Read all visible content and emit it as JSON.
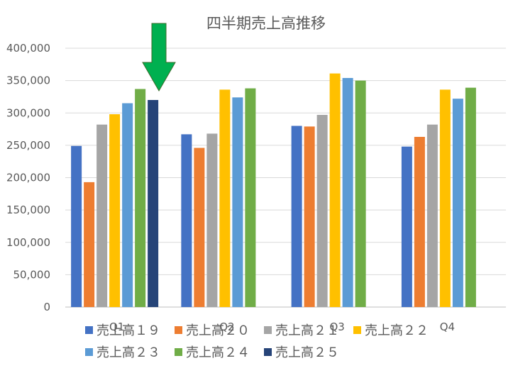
{
  "chart_data": {
    "type": "bar",
    "title": "四半期売上高推移",
    "categories": [
      "Q1",
      "Q2",
      "Q3",
      "Q4"
    ],
    "ylim": [
      0,
      400000
    ],
    "yticks": [
      "0",
      "50,000",
      "100,000",
      "150,000",
      "200,000",
      "250,000",
      "300,000",
      "350,000",
      "400,000"
    ],
    "ytick_values": [
      0,
      50000,
      100000,
      150000,
      200000,
      250000,
      300000,
      350000,
      400000
    ],
    "grid": true,
    "legend_position": "bottom",
    "series": [
      {
        "name": "売上高１９",
        "color": "#4472C4",
        "values": [
          249000,
          267000,
          280000,
          248000
        ]
      },
      {
        "name": "売上高２０",
        "color": "#ED7D31",
        "values": [
          193000,
          246000,
          279000,
          263000
        ]
      },
      {
        "name": "売上高２１",
        "color": "#A5A5A5",
        "values": [
          282000,
          268000,
          297000,
          282000
        ]
      },
      {
        "name": "売上高２２",
        "color": "#FFC000",
        "values": [
          298000,
          336000,
          361000,
          336000
        ]
      },
      {
        "name": "売上高２３",
        "color": "#5B9BD5",
        "values": [
          315000,
          324000,
          354000,
          322000
        ]
      },
      {
        "name": "売上高２４",
        "color": "#70AD47",
        "values": [
          337000,
          338000,
          350000,
          339000
        ]
      },
      {
        "name": "売上高２５",
        "color": "#264478",
        "values": [
          320000,
          null,
          null,
          null
        ]
      }
    ],
    "annotation_color": "#00B050"
  }
}
